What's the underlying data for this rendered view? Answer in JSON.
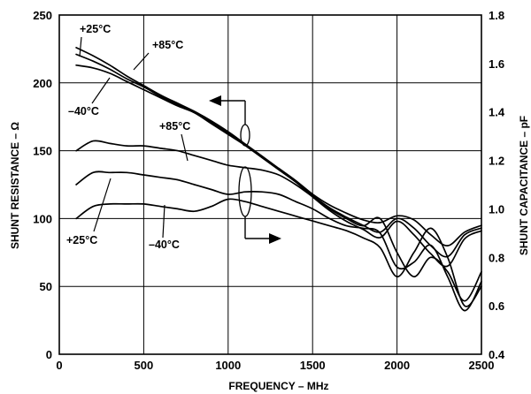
{
  "chart_data": {
    "type": "line",
    "xlabel": "FREQUENCY – MHz",
    "ylabel_left": "SHUNT RESISTANCE – Ω",
    "ylabel_right": "SHUNT CAPACITANCE – pF",
    "xlim": [
      0,
      2500
    ],
    "ylim_left": [
      0,
      250
    ],
    "ylim_right": [
      0.4,
      1.8
    ],
    "grid": true,
    "x_ticks": [
      0,
      500,
      1000,
      1500,
      2000,
      2500
    ],
    "x_tick_labels": [
      "0",
      "500",
      "1000",
      "1500",
      "2000",
      "2500"
    ],
    "y_left_ticks": [
      0,
      50,
      100,
      150,
      200,
      250
    ],
    "y_left_tick_labels": [
      "0",
      "50",
      "100",
      "150",
      "200",
      "250"
    ],
    "y_right_ticks": [
      0.4,
      0.6,
      0.8,
      1.0,
      1.2,
      1.4,
      1.6,
      1.8
    ],
    "y_right_tick_labels": [
      "0.4",
      "0.6",
      "0.8",
      "1.0",
      "1.2",
      "1.4",
      "1.6",
      "1.8"
    ],
    "series": [
      {
        "name": "+25°C",
        "group": "resistance",
        "axis": "left",
        "x": [
          100,
          200,
          300,
          400,
          500,
          600,
          700,
          800,
          900,
          1000,
          1100,
          1200,
          1300,
          1400,
          1500,
          1600,
          1700,
          1800,
          1900,
          2000,
          2100,
          2200,
          2300,
          2400,
          2500
        ],
        "y": [
          226,
          220,
          213,
          205,
          198,
          191,
          185,
          179,
          172,
          164,
          155,
          146,
          137,
          128,
          118,
          110,
          104,
          99,
          97,
          102,
          99,
          88,
          80,
          90,
          95
        ]
      },
      {
        "name": "+85°C",
        "group": "resistance",
        "axis": "left",
        "x": [
          100,
          200,
          300,
          400,
          500,
          600,
          700,
          800,
          900,
          1000,
          1100,
          1200,
          1300,
          1400,
          1500,
          1600,
          1700,
          1800,
          1900,
          2000,
          2100,
          2200,
          2300,
          2400,
          2500
        ],
        "y": [
          221,
          216,
          210,
          203,
          197,
          190,
          184,
          179,
          171,
          163,
          154,
          145,
          136,
          127,
          117,
          108,
          101,
          95,
          90,
          100,
          93,
          80,
          72,
          88,
          93
        ]
      },
      {
        "name": "-40°C",
        "group": "resistance",
        "axis": "left",
        "x": [
          100,
          200,
          300,
          400,
          500,
          600,
          700,
          800,
          900,
          1000,
          1100,
          1200,
          1300,
          1400,
          1500,
          1600,
          1700,
          1800,
          1900,
          2000,
          2100,
          2200,
          2300,
          2400,
          2500
        ],
        "y": [
          213,
          211,
          207,
          201,
          195,
          189,
          183,
          178,
          170,
          162,
          154,
          145,
          136,
          127,
          116,
          106,
          98,
          92,
          86,
          98,
          88,
          74,
          65,
          85,
          91
        ]
      },
      {
        "name": "+85°C",
        "group": "capacitance",
        "axis": "right",
        "x": [
          100,
          200,
          300,
          400,
          500,
          600,
          700,
          800,
          900,
          1000,
          1100,
          1200,
          1300,
          1400,
          1500,
          1600,
          1700,
          1800,
          1900,
          2000,
          2100,
          2200,
          2300,
          2400,
          2500
        ],
        "y": [
          1.24,
          1.28,
          1.27,
          1.26,
          1.26,
          1.25,
          1.24,
          1.22,
          1.2,
          1.18,
          1.17,
          1.16,
          1.14,
          1.1,
          1.05,
          1.0,
          0.96,
          0.93,
          0.96,
          0.82,
          0.72,
          0.8,
          0.74,
          0.62,
          0.74
        ]
      },
      {
        "name": "+25°C",
        "group": "capacitance",
        "axis": "right",
        "x": [
          100,
          200,
          300,
          400,
          500,
          600,
          700,
          800,
          900,
          1000,
          1100,
          1200,
          1300,
          1400,
          1500,
          1600,
          1700,
          1800,
          1900,
          2000,
          2100,
          2200,
          2300,
          2400,
          2500
        ],
        "y": [
          1.1,
          1.15,
          1.15,
          1.15,
          1.14,
          1.13,
          1.12,
          1.1,
          1.08,
          1.06,
          1.07,
          1.07,
          1.06,
          1.03,
          1.0,
          0.96,
          0.93,
          0.92,
          0.9,
          0.76,
          0.78,
          0.85,
          0.72,
          0.58,
          0.7
        ]
      },
      {
        "name": "-40°C",
        "group": "capacitance",
        "axis": "right",
        "x": [
          100,
          200,
          300,
          400,
          500,
          600,
          700,
          800,
          900,
          1000,
          1100,
          1200,
          1300,
          1400,
          1500,
          1600,
          1700,
          1800,
          1900,
          2000,
          2100,
          2200,
          2300,
          2400,
          2500
        ],
        "y": [
          0.96,
          1.01,
          1.02,
          1.02,
          1.02,
          1.01,
          1.0,
          0.99,
          1.01,
          1.04,
          1.03,
          1.01,
          0.99,
          0.97,
          0.95,
          0.93,
          0.91,
          0.88,
          0.84,
          0.72,
          0.82,
          0.92,
          0.8,
          0.6,
          0.68
        ]
      }
    ],
    "annotations": [
      {
        "text": "+25°C",
        "group": "resistance"
      },
      {
        "text": "+85°C",
        "group": "resistance"
      },
      {
        "text": "–40°C",
        "group": "resistance"
      },
      {
        "text": "+85°C",
        "group": "capacitance"
      },
      {
        "text": "+25°C",
        "group": "capacitance"
      },
      {
        "text": "–40°C",
        "group": "capacitance"
      }
    ]
  }
}
